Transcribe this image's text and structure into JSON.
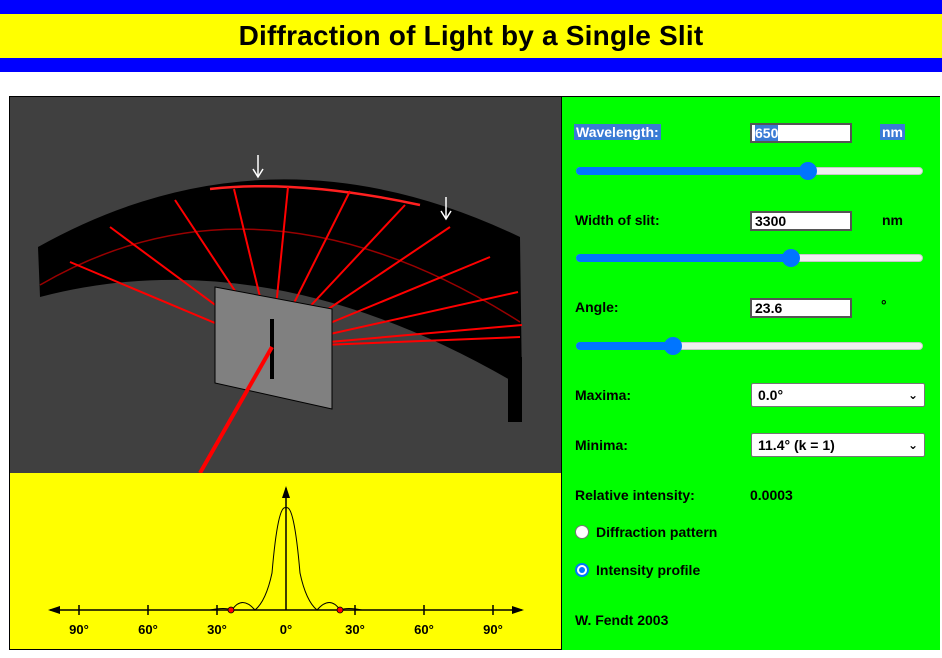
{
  "header": {
    "title": "Diffraction of Light by a Single Slit",
    "band_color": "#0000ff",
    "title_bg": "#ffff00"
  },
  "controls": {
    "wavelength": {
      "label": "Wavelength:",
      "value": "650",
      "unit": "nm",
      "slider_fraction": 0.67
    },
    "slit_width": {
      "label": "Width of slit:",
      "value": "3300",
      "unit": "nm",
      "slider_fraction": 0.62
    },
    "angle": {
      "label": "Angle:",
      "value": "23.6",
      "unit": "°",
      "slider_fraction": 0.28
    },
    "maxima": {
      "label": "Maxima:",
      "selected": "0.0°"
    },
    "minima": {
      "label": "Minima:",
      "selected": "11.4° (k = 1)"
    },
    "intensity": {
      "label": "Relative intensity:",
      "value": "0.0003"
    },
    "view_mode": {
      "options": [
        {
          "label": "Diffraction pattern",
          "selected": false
        },
        {
          "label": "Intensity profile",
          "selected": true
        }
      ]
    },
    "credit": "W. Fendt 2003"
  },
  "graph": {
    "tick_labels": [
      "90°",
      "60°",
      "30°",
      "0°",
      "30°",
      "60°",
      "90°"
    ]
  },
  "colors": {
    "panel_bg": "#00ff00",
    "sim_bg": "#404040",
    "graph_bg": "#ffff00",
    "accent": "#0075ff",
    "beam": "#ff0000"
  },
  "icons": [
    "down-arrow-icon",
    "chevron-down-icon"
  ]
}
